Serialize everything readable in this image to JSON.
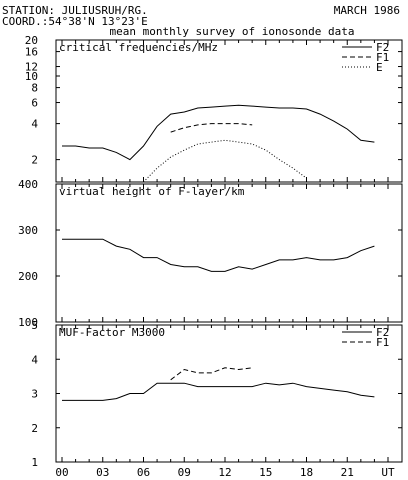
{
  "header": {
    "station": "STATION: JULIUSRUH/RG.",
    "date": "MARCH 1986",
    "coord": "COORD.:54°38'N 13°23'E",
    "survey": "mean monthly survey of ionosonde data"
  },
  "chart_data": [
    {
      "type": "line",
      "title": "critical frequencies/MHz",
      "yscale": "log",
      "ylim": [
        1.3,
        20
      ],
      "yticks": [
        2,
        4,
        6,
        8,
        10,
        12,
        16,
        20
      ],
      "xlim": [
        0,
        24
      ],
      "legend": "top-right",
      "series": [
        {
          "name": "F2",
          "style": "solid",
          "x": [
            0,
            1,
            2,
            3,
            4,
            5,
            6,
            7,
            8,
            9,
            10,
            11,
            12,
            13,
            14,
            15,
            16,
            17,
            18,
            19,
            20,
            21,
            22,
            23
          ],
          "values": [
            2.6,
            2.6,
            2.5,
            2.5,
            2.3,
            2.0,
            2.6,
            3.8,
            4.8,
            5.0,
            5.4,
            5.5,
            5.6,
            5.7,
            5.6,
            5.5,
            5.4,
            5.4,
            5.3,
            4.8,
            4.2,
            3.6,
            2.9,
            2.8
          ]
        },
        {
          "name": "F1",
          "style": "dashed",
          "x": [
            8,
            9,
            10,
            11,
            12,
            13,
            14
          ],
          "values": [
            3.4,
            3.7,
            3.9,
            4.0,
            4.0,
            4.0,
            3.9
          ]
        },
        {
          "name": "E",
          "style": "dotted",
          "x": [
            6,
            7,
            8,
            9,
            10,
            11,
            12,
            13,
            14,
            15,
            16,
            17,
            18
          ],
          "values": [
            1.3,
            1.7,
            2.1,
            2.4,
            2.7,
            2.8,
            2.9,
            2.8,
            2.7,
            2.4,
            2.0,
            1.7,
            1.4
          ]
        }
      ]
    },
    {
      "type": "line",
      "title": "virtual height of F-layer/km",
      "ylim": [
        100,
        400
      ],
      "yticks": [
        100,
        200,
        300,
        400
      ],
      "xlim": [
        0,
        24
      ],
      "series": [
        {
          "style": "solid",
          "x": [
            0,
            1,
            2,
            3,
            4,
            5,
            6,
            7,
            8,
            9,
            10,
            11,
            12,
            13,
            14,
            15,
            16,
            17,
            18,
            19,
            20,
            21,
            22,
            23
          ],
          "values": [
            280,
            280,
            280,
            280,
            265,
            258,
            240,
            240,
            225,
            220,
            220,
            210,
            210,
            220,
            215,
            225,
            235,
            235,
            240,
            235,
            235,
            240,
            255,
            265
          ]
        }
      ]
    },
    {
      "type": "line",
      "title": "MUF-Factor M3000",
      "ylim": [
        1,
        5
      ],
      "yticks": [
        1,
        2,
        3,
        4,
        5
      ],
      "xlim": [
        0,
        24
      ],
      "xticks": [
        "00",
        "03",
        "06",
        "09",
        "12",
        "15",
        "18",
        "21",
        "UT"
      ],
      "legend": "top-right",
      "series": [
        {
          "name": "F2",
          "style": "solid",
          "x": [
            0,
            1,
            2,
            3,
            4,
            5,
            6,
            7,
            8,
            9,
            10,
            11,
            12,
            13,
            14,
            15,
            16,
            17,
            18,
            19,
            20,
            21,
            22,
            23
          ],
          "values": [
            2.8,
            2.8,
            2.8,
            2.8,
            2.85,
            3.0,
            3.0,
            3.3,
            3.3,
            3.3,
            3.2,
            3.2,
            3.2,
            3.2,
            3.2,
            3.3,
            3.25,
            3.3,
            3.2,
            3.15,
            3.1,
            3.05,
            2.95,
            2.9
          ]
        },
        {
          "name": "F1",
          "style": "dashed",
          "x": [
            8,
            9,
            10,
            11,
            12,
            13,
            14
          ],
          "values": [
            3.4,
            3.7,
            3.6,
            3.6,
            3.75,
            3.7,
            3.75
          ]
        }
      ]
    }
  ]
}
